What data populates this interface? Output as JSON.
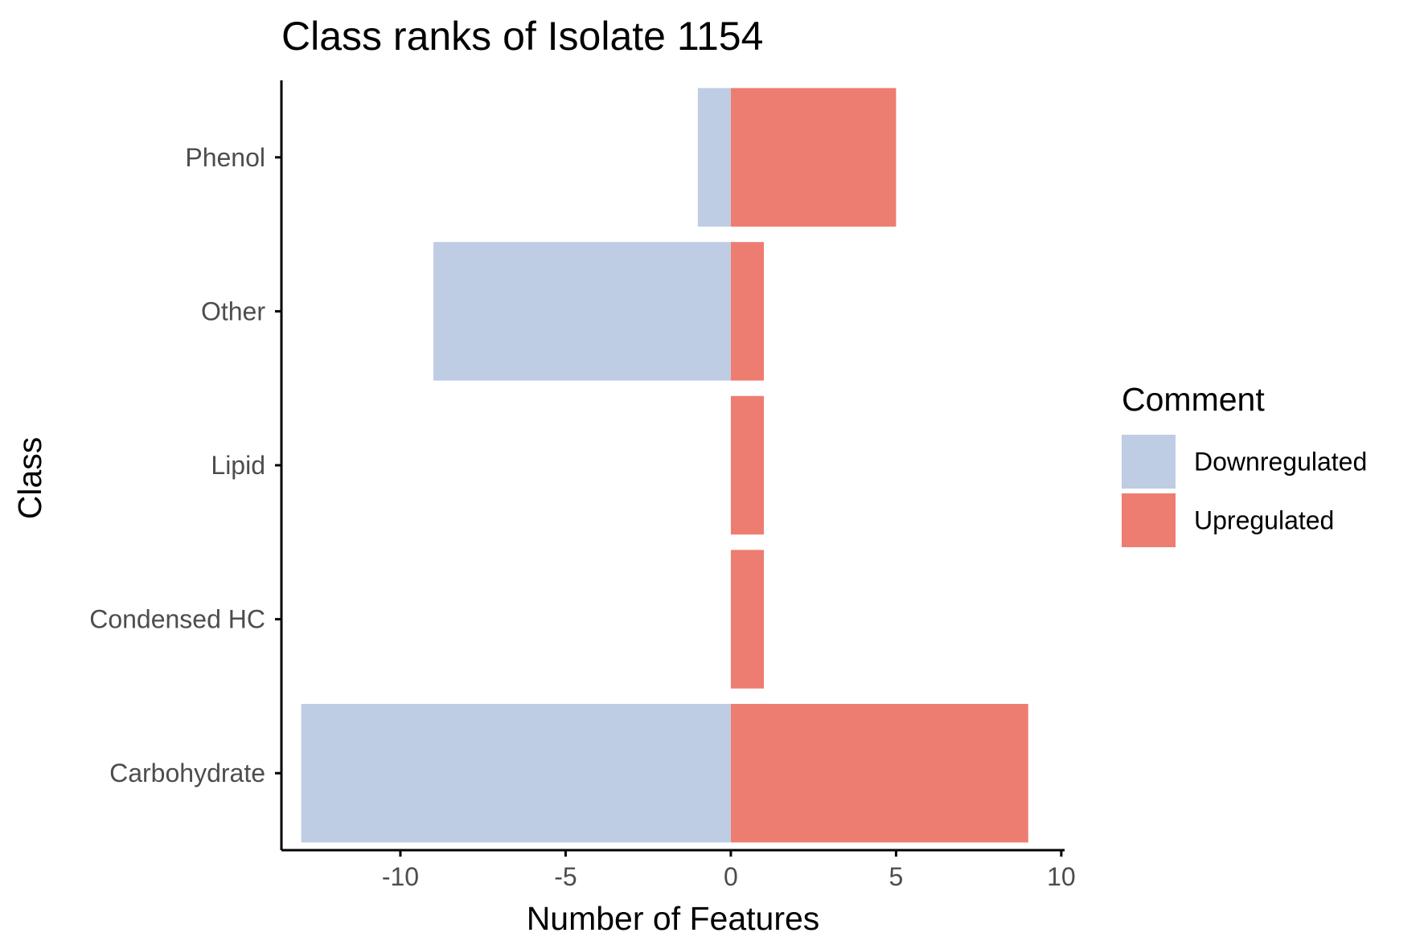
{
  "chart_data": {
    "type": "bar",
    "orientation": "horizontal",
    "stacked": "diverging",
    "title": "Class ranks of Isolate 1154",
    "xlabel": "Number of Features",
    "ylabel": "Class",
    "categories": [
      "Phenol",
      "Other",
      "Lipid",
      "Condensed HC",
      "Carbohydrate"
    ],
    "series": [
      {
        "name": "Downregulated",
        "color": "#BECDE3",
        "values": [
          -1,
          -9,
          0,
          0,
          -13
        ]
      },
      {
        "name": "Upregulated",
        "color": "#EE7D71",
        "values": [
          5,
          1,
          1,
          1,
          9
        ]
      }
    ],
    "xticks": [
      -10,
      -5,
      0,
      5,
      10
    ],
    "xtick_labels": [
      "-10",
      "-5",
      "0",
      "5",
      "10"
    ],
    "xlim": [
      -13.6,
      10.1
    ],
    "grid": false,
    "legend": {
      "title": "Comment",
      "position": "right"
    }
  }
}
